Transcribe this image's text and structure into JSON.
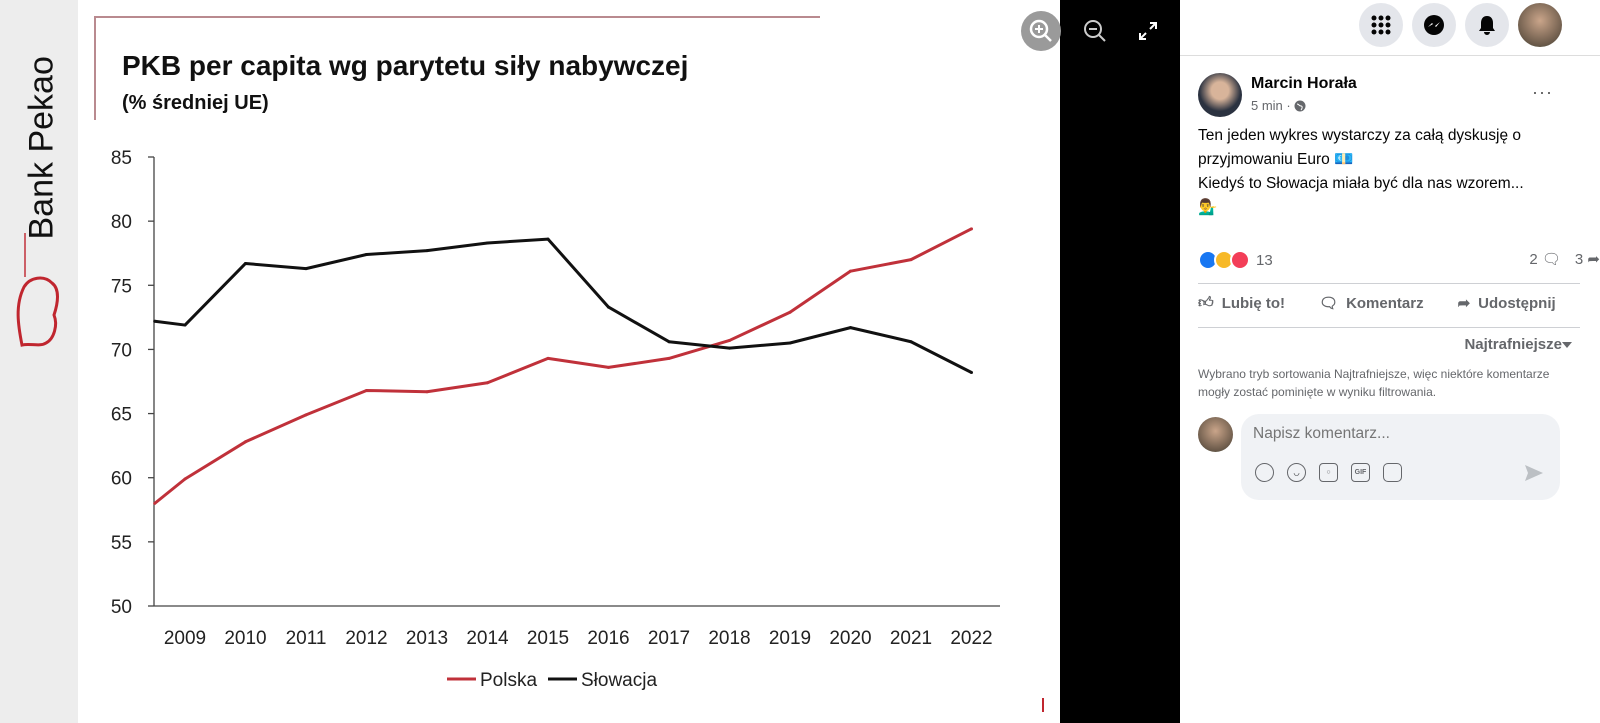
{
  "brand": {
    "name": "Bank Pekao"
  },
  "viewer": {
    "zoom_in": "zoom-in",
    "zoom_out": "zoom-out",
    "fullscreen": "fullscreen"
  },
  "chart_data": {
    "type": "line",
    "title": "PKB per capita wg parytetu siły nabywczej",
    "subtitle": "(% średniej UE)",
    "xlabel": "",
    "ylabel": "",
    "ylim": [
      50,
      85
    ],
    "yticks": [
      "50",
      "55",
      "60",
      "65",
      "70",
      "75",
      "80",
      "85"
    ],
    "categories": [
      "2009",
      "2010",
      "2011",
      "2012",
      "2013",
      "2014",
      "2015",
      "2016",
      "2017",
      "2018",
      "2019",
      "2020",
      "2021",
      "2022"
    ],
    "x": [
      2008.5,
      2009,
      2010,
      2011,
      2012,
      2013,
      2014,
      2015,
      2016,
      2017,
      2018,
      2019,
      2020,
      2021,
      2022
    ],
    "series": [
      {
        "name": "Polska",
        "color": "#c0313a",
        "values": [
          58.0,
          59.9,
          62.8,
          64.9,
          66.8,
          66.7,
          67.4,
          69.3,
          68.6,
          69.3,
          70.7,
          72.9,
          76.1,
          77.0,
          79.4
        ]
      },
      {
        "name": "Słowacja",
        "color": "#111111",
        "values": [
          72.2,
          71.9,
          76.7,
          76.3,
          77.4,
          77.7,
          78.3,
          78.6,
          73.3,
          70.6,
          70.1,
          70.5,
          71.7,
          70.6,
          68.2
        ]
      }
    ],
    "legend": "bottom",
    "grid": false
  },
  "post": {
    "author": "Marcin Horała",
    "time": "5 min ·",
    "lines": [
      "Ten jeden wykres wystarczy za całą dyskusję o przyjmowaniu Euro 💶",
      "Kiedyś to Słowacja miała być dla nas wzorem...",
      "💁‍♂️"
    ],
    "reactions_count": "13",
    "comments_count": "2",
    "shares_count": "3",
    "more": "···"
  },
  "actions": {
    "like": "Lubię to!",
    "comment": "Komentarz",
    "share": "Udostępnij"
  },
  "comments": {
    "sort_label": "Najtrafniejsze",
    "sort_info": "Wybrano tryb sortowania Najtrafniejsze, więc niektóre komentarze mogły zostać pominięte w wyniku filtrowania.",
    "placeholder": "Napisz komentarz...",
    "gif": "GIF"
  },
  "colors": {
    "fb_blue": "#1877f2",
    "red": "#c0313a",
    "gray": "#65676b"
  }
}
